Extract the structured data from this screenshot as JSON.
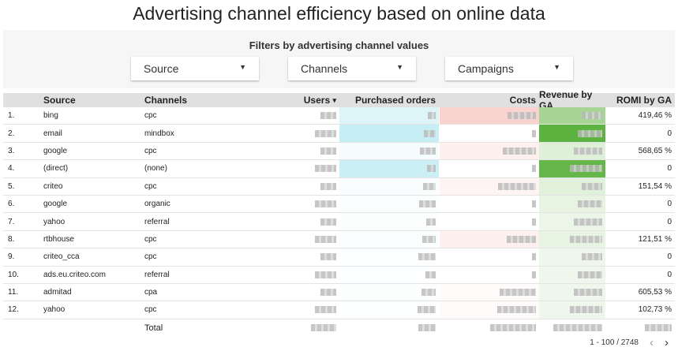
{
  "title": "Advertising channel efficiency based on online data",
  "filters": {
    "title": "Filters by advertising channel values",
    "dropdowns": [
      "Source",
      "Channels",
      "Campaigns"
    ]
  },
  "table": {
    "headers": {
      "source": "Source",
      "channels": "Channels",
      "users": "Users",
      "sort_indicator": "▾",
      "orders": "Purchased orders",
      "costs": "Costs",
      "revenue": "Revenue by GA",
      "romi": "ROMI by GA"
    },
    "rows": [
      {
        "n": "1.",
        "source": "bing",
        "channel": "cpc",
        "romi": "419,46 %",
        "orders_heat": 0.35,
        "costs_heat": 0.6,
        "revenue_heat": 0.55
      },
      {
        "n": "2.",
        "source": "email",
        "channel": "mindbox",
        "romi": "0",
        "orders_heat": 0.6,
        "costs_heat": 0,
        "revenue_heat": 1
      },
      {
        "n": "3.",
        "source": "google",
        "channel": "cpc",
        "romi": "568,65 %",
        "orders_heat": 0.1,
        "costs_heat": 0.2,
        "revenue_heat": 0.2
      },
      {
        "n": "4.",
        "source": "(direct)",
        "channel": "(none)",
        "romi": "0",
        "orders_heat": 0.55,
        "costs_heat": 0,
        "revenue_heat": 0.95
      },
      {
        "n": "5.",
        "source": "criteo",
        "channel": "cpc",
        "romi": "151,54 %",
        "orders_heat": 0.06,
        "costs_heat": 0.15,
        "revenue_heat": 0.18
      },
      {
        "n": "6.",
        "source": "google",
        "channel": "organic",
        "romi": "0",
        "orders_heat": 0.04,
        "costs_heat": 0,
        "revenue_heat": 0.15
      },
      {
        "n": "7.",
        "source": "yahoo",
        "channel": "referral",
        "romi": "0",
        "orders_heat": 0.03,
        "costs_heat": 0,
        "revenue_heat": 0.12
      },
      {
        "n": "8.",
        "source": "rtbhouse",
        "channel": "cpc",
        "romi": "121,51 %",
        "orders_heat": 0.04,
        "costs_heat": 0.2,
        "revenue_heat": 0.15
      },
      {
        "n": "9.",
        "source": "criteo_cca",
        "channel": "cpc",
        "romi": "0",
        "orders_heat": 0.02,
        "costs_heat": 0,
        "revenue_heat": 0.1
      },
      {
        "n": "10.",
        "source": "ads.eu.criteo.com",
        "channel": "referral",
        "romi": "0",
        "orders_heat": 0.02,
        "costs_heat": 0,
        "revenue_heat": 0.1
      },
      {
        "n": "11.",
        "source": "admitad",
        "channel": "cpa",
        "romi": "605,53 %",
        "orders_heat": 0.03,
        "costs_heat": 0.05,
        "revenue_heat": 0.1
      },
      {
        "n": "12.",
        "source": "yahoo",
        "channel": "cpc",
        "romi": "102,73 %",
        "orders_heat": 0.02,
        "costs_heat": 0.05,
        "revenue_heat": 0.1
      }
    ],
    "total_label": "Total"
  },
  "pagination": {
    "range": "1 - 100 / 2748",
    "prev": "‹",
    "next": "›"
  },
  "colors": {
    "orders": "#9fe3ee",
    "costs": "#f7b5b0",
    "revenue": "#5db33f",
    "header_bg": "#e0e0e0"
  }
}
